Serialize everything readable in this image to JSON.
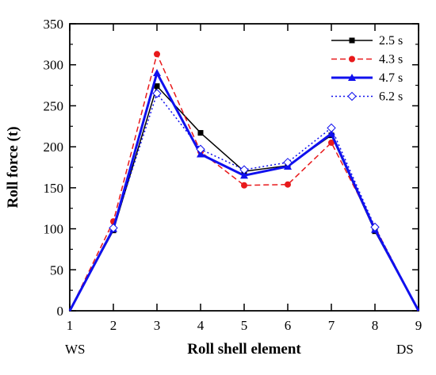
{
  "chart_data": {
    "type": "line",
    "xlabel": "Roll shell element",
    "ylabel": "Roll force (t)",
    "x": [
      1,
      2,
      3,
      4,
      5,
      6,
      7,
      8,
      9
    ],
    "xlim": [
      1,
      9
    ],
    "ylim": [
      0,
      350
    ],
    "yticks": [
      0,
      50,
      100,
      150,
      200,
      250,
      300,
      350
    ],
    "end_labels": {
      "left": "WS",
      "right": "DS"
    },
    "legend_position": "top-right",
    "grid": false,
    "series": [
      {
        "name": "2.5 s",
        "values": [
          0,
          98,
          274,
          217,
          170,
          177,
          214,
          97,
          0
        ],
        "color": "#000000",
        "dash": "solid",
        "marker": "square",
        "width": 1.5
      },
      {
        "name": "4.3 s",
        "values": [
          0,
          109,
          313,
          194,
          153,
          154,
          205,
          102,
          0
        ],
        "color": "#e8191b",
        "dash": "dashed",
        "marker": "circle",
        "width": 1.5
      },
      {
        "name": "4.7 s",
        "values": [
          0,
          100,
          290,
          191,
          165,
          176,
          216,
          99,
          0
        ],
        "color": "#1010ee",
        "dash": "solid",
        "marker": "triangle",
        "width": 3
      },
      {
        "name": "6.2 s",
        "values": [
          0,
          101,
          265,
          197,
          172,
          181,
          223,
          102,
          0
        ],
        "color": "#1010ee",
        "dash": "dotted",
        "marker": "diamond-open",
        "width": 1.5
      }
    ]
  }
}
